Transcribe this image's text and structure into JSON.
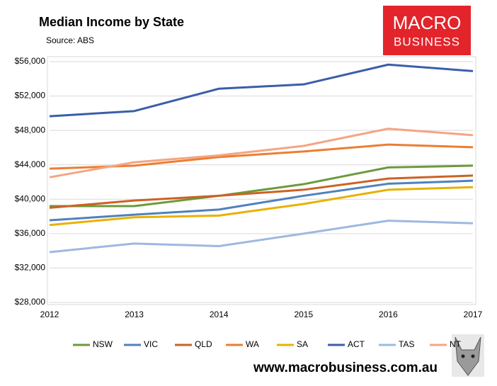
{
  "chart_data": {
    "type": "line",
    "title": "Median Income by State",
    "subtitle": "Source: ABS",
    "logo": [
      "MACRO",
      "BUSINESS"
    ],
    "footer": "www.macrobusiness.com.au",
    "x": [
      2012,
      2013,
      2014,
      2015,
      2016,
      2017
    ],
    "xlim": [
      2012,
      2017
    ],
    "xticks": [
      2012,
      2013,
      2014,
      2015,
      2016,
      2017
    ],
    "ylim": [
      28000,
      56000
    ],
    "yticks": [
      {
        "value": 28000,
        "label": "$28,000"
      },
      {
        "value": 32000,
        "label": "$32,000"
      },
      {
        "value": 36000,
        "label": "$36,000"
      },
      {
        "value": 40000,
        "label": "$40,000"
      },
      {
        "value": 44000,
        "label": "$44,000"
      },
      {
        "value": 48000,
        "label": "$48,000"
      },
      {
        "value": 52000,
        "label": "$52,000"
      },
      {
        "value": 56000,
        "label": "$56,000"
      }
    ],
    "grid": true,
    "legend": "bottom",
    "series": [
      {
        "name": "NSW",
        "color": "#6b9a3c",
        "values": [
          39200,
          39200,
          40400,
          41750,
          43700,
          43900
        ]
      },
      {
        "name": "VIC",
        "color": "#4f81bd",
        "values": [
          37550,
          38200,
          38800,
          40400,
          41800,
          42150
        ]
      },
      {
        "name": "QLD",
        "color": "#cc6224",
        "values": [
          39000,
          39850,
          40400,
          41100,
          42400,
          42750
        ]
      },
      {
        "name": "WA",
        "color": "#ed7d31",
        "values": [
          43550,
          43900,
          44900,
          45550,
          46350,
          46050
        ]
      },
      {
        "name": "SA",
        "color": "#e8b100",
        "values": [
          37000,
          37900,
          38100,
          39450,
          41100,
          41400
        ]
      },
      {
        "name": "ACT",
        "color": "#3b5ea8",
        "values": [
          49650,
          50250,
          52850,
          53350,
          55650,
          54900
        ]
      },
      {
        "name": "TAS",
        "color": "#9cb9e1",
        "values": [
          33850,
          34850,
          34550,
          36000,
          37500,
          37200
        ]
      },
      {
        "name": "NT",
        "color": "#f4a582",
        "values": [
          42550,
          44300,
          45100,
          46200,
          48200,
          47450
        ]
      }
    ]
  }
}
